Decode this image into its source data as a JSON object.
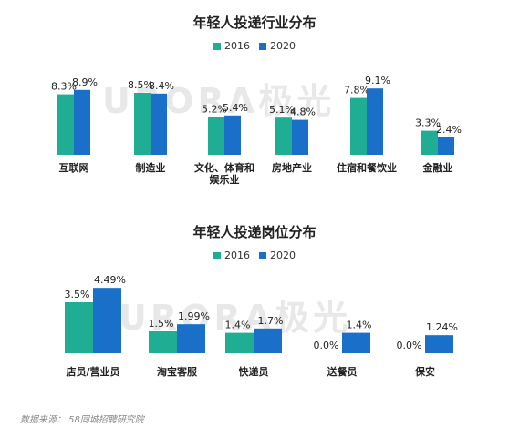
{
  "colors": {
    "2016": "#1fae93",
    "2020": "#1a6fc8"
  },
  "watermark_text": "URORA极光",
  "source_text": "数据来源： 58同城招聘研究院",
  "chart_data": [
    {
      "type": "bar",
      "title": "年轻人投递行业分布",
      "categories": [
        "互联网",
        "制造业",
        "文化、体育和\n娱乐业",
        "房地产业",
        "住宿和餐饮业",
        "金融业"
      ],
      "series": [
        {
          "name": "2016",
          "values": [
            8.3,
            8.5,
            5.2,
            5.1,
            7.8,
            3.3
          ],
          "labels": [
            "8.3%",
            "8.5%",
            "5.2%",
            "5.1%",
            "7.8%",
            "3.3%"
          ]
        },
        {
          "name": "2020",
          "values": [
            8.9,
            8.4,
            5.4,
            4.8,
            9.1,
            2.4
          ],
          "labels": [
            "8.9%",
            "8.4%",
            "5.4%",
            "4.8%",
            "9.1%",
            "2.4%"
          ]
        }
      ],
      "ylim": [
        0,
        10
      ],
      "legend": "top-center",
      "grid": false
    },
    {
      "type": "bar",
      "title": "年轻人投递岗位分布",
      "categories": [
        "店员/营业员",
        "淘宝客服",
        "快递员",
        "送餐员",
        "保安"
      ],
      "series": [
        {
          "name": "2016",
          "values": [
            3.5,
            1.5,
            1.4,
            0.0,
            0.0
          ],
          "labels": [
            "3.5%",
            "1.5%",
            "1.4%",
            "0.0%",
            "0.0%"
          ]
        },
        {
          "name": "2020",
          "values": [
            4.49,
            1.99,
            1.7,
            1.4,
            1.24
          ],
          "labels": [
            "4.49%",
            "1.99%",
            "1.7%",
            "1.4%",
            "1.24%"
          ]
        }
      ],
      "ylim": [
        0,
        5
      ],
      "legend": "top-center",
      "grid": false
    }
  ]
}
